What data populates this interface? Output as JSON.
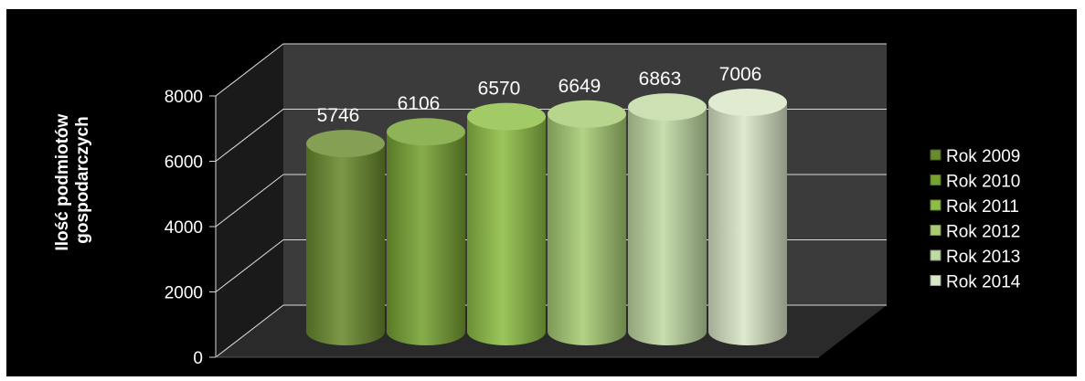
{
  "chart_data": {
    "type": "bar",
    "style": "3d-cylinder",
    "title": "",
    "xlabel": "",
    "ylabel": "Ilość podmiotów gospodarczych",
    "ylabel_lines": [
      "Ilość podmiotów",
      "gospodarczych"
    ],
    "ylim": [
      0,
      8000
    ],
    "yticks": [
      0,
      2000,
      4000,
      6000,
      8000
    ],
    "grid": true,
    "legend_position": "right",
    "series": [
      {
        "name": "Rok 2009",
        "value": 5746,
        "color": "#6a8a2e"
      },
      {
        "name": "Rok 2010",
        "value": 6106,
        "color": "#77a232"
      },
      {
        "name": "Rok 2011",
        "value": 6570,
        "color": "#8ebe45"
      },
      {
        "name": "Rok 2012",
        "value": 6649,
        "color": "#a7cc74"
      },
      {
        "name": "Rok 2013",
        "value": 6863,
        "color": "#c1d9a3"
      },
      {
        "name": "Rok 2014",
        "value": 7006,
        "color": "#d9e6c7"
      }
    ],
    "colors": {
      "background": "#000000",
      "wall": "#3b3b3b",
      "floor": "#2a2a2a",
      "grid": "#d8d8d8",
      "text": "#ffffff"
    }
  }
}
